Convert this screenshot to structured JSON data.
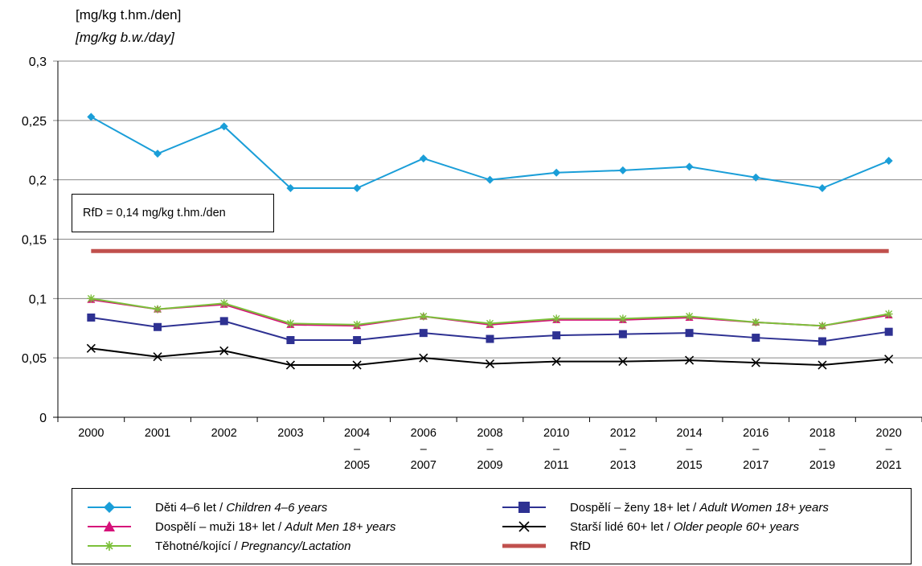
{
  "chart_data": {
    "type": "line",
    "ylabel_cz": "[mg/kg t.hm./den]",
    "ylabel_en": "[mg/kg b.w./day]",
    "ylim": [
      0,
      0.3
    ],
    "yticks": [
      {
        "value": 0,
        "label": "0"
      },
      {
        "value": 0.05,
        "label": "0,05"
      },
      {
        "value": 0.1,
        "label": "0,1"
      },
      {
        "value": 0.15,
        "label": "0,15"
      },
      {
        "value": 0.2,
        "label": "0,2"
      },
      {
        "value": 0.25,
        "label": "0,25"
      },
      {
        "value": 0.3,
        "label": "0,3"
      }
    ],
    "grid": true,
    "categories": [
      [
        "2000"
      ],
      [
        "2001"
      ],
      [
        "2002"
      ],
      [
        "2003"
      ],
      [
        "2004",
        "–",
        "2005"
      ],
      [
        "2006",
        "–",
        "2007"
      ],
      [
        "2008",
        "–",
        "2009"
      ],
      [
        "2010",
        "–",
        "2011"
      ],
      [
        "2012",
        "–",
        "2013"
      ],
      [
        "2014",
        "–",
        "2015"
      ],
      [
        "2016",
        "–",
        "2017"
      ],
      [
        "2018",
        "–",
        "2019"
      ],
      [
        "2020",
        "–",
        "2021"
      ]
    ],
    "series": [
      {
        "name": "Děti 4–6 let / ",
        "name_en": "Children 4–6 years",
        "color": "#1a9ed8",
        "marker": "diamond",
        "values": [
          0.253,
          0.222,
          0.245,
          0.193,
          0.193,
          0.218,
          0.2,
          0.206,
          0.208,
          0.211,
          0.202,
          0.193,
          0.216
        ]
      },
      {
        "name": "Dospělí – muži 18+ let / ",
        "name_en": "Adult Men 18+ years",
        "color": "#d6127a",
        "marker": "triangle",
        "values": [
          0.099,
          0.091,
          0.095,
          0.078,
          0.077,
          0.085,
          0.078,
          0.082,
          0.082,
          0.084,
          0.08,
          0.077,
          0.086
        ]
      },
      {
        "name": "Těhotné/kojící / ",
        "name_en": "Pregnancy/Lactation",
        "color": "#7cc03a",
        "marker": "star",
        "values": [
          0.1,
          0.091,
          0.096,
          0.079,
          0.078,
          0.085,
          0.079,
          0.083,
          0.083,
          0.085,
          0.08,
          0.077,
          0.087
        ]
      },
      {
        "name": "Dospělí – ženy 18+ let / ",
        "name_en": "Adult Women 18+ years",
        "color": "#2e3192",
        "marker": "square",
        "values": [
          0.084,
          0.076,
          0.081,
          0.065,
          0.065,
          0.071,
          0.066,
          0.069,
          0.07,
          0.071,
          0.067,
          0.064,
          0.072
        ]
      },
      {
        "name": "Starší lidé 60+ let / ",
        "name_en": "Older people 60+ years",
        "color": "#000000",
        "marker": "x",
        "values": [
          0.058,
          0.051,
          0.056,
          0.044,
          0.044,
          0.05,
          0.045,
          0.047,
          0.047,
          0.048,
          0.046,
          0.044,
          0.049
        ]
      },
      {
        "name": "RfD",
        "name_en": "",
        "color": "#c0504d",
        "marker": "none",
        "values": [
          0.14,
          0.14,
          0.14,
          0.14,
          0.14,
          0.14,
          0.14,
          0.14,
          0.14,
          0.14,
          0.14,
          0.14,
          0.14
        ]
      }
    ],
    "annotation": "RfD = 0,14 mg/kg t.hm./den",
    "legend_position": "bottom"
  }
}
